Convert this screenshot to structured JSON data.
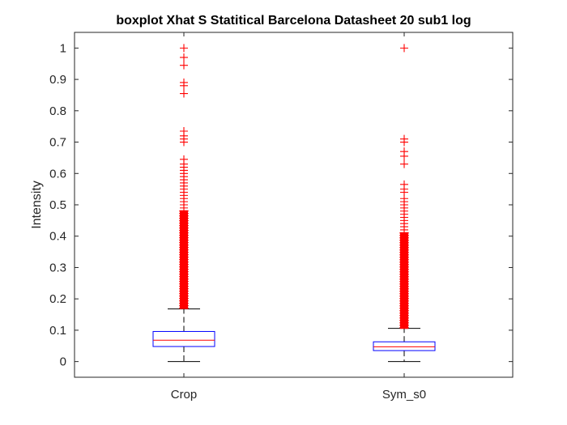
{
  "chart_data": {
    "type": "boxplot",
    "title": "boxplot Xhat S Statitical Barcelona Datasheet 20 sub1 log",
    "ylabel": "Intensity",
    "xlabel": "",
    "ylim": [
      -0.05,
      1.05
    ],
    "yticks": [
      0,
      0.1,
      0.2,
      0.3,
      0.4,
      0.5,
      0.6,
      0.7,
      0.8,
      0.9,
      1
    ],
    "ytick_labels": [
      "0",
      "0.1",
      "0.2",
      "0.3",
      "0.4",
      "0.5",
      "0.6",
      "0.7",
      "0.8",
      "0.9",
      "1"
    ],
    "categories": [
      "Crop",
      "Sym_s0"
    ],
    "boxes": [
      {
        "name": "Crop",
        "whisker_low": 0.0,
        "q1": 0.048,
        "median": 0.068,
        "q3": 0.096,
        "whisker_high": 0.168,
        "outlier_dense_range": [
          0.17,
          0.48
        ],
        "outliers": [
          0.49,
          0.5,
          0.51,
          0.52,
          0.53,
          0.54,
          0.55,
          0.56,
          0.57,
          0.58,
          0.59,
          0.6,
          0.61,
          0.62,
          0.63,
          0.645,
          0.7,
          0.71,
          0.72,
          0.735,
          0.855,
          0.88,
          0.89,
          0.945,
          0.97,
          1.0
        ]
      },
      {
        "name": "Sym_s0",
        "whisker_low": 0.0,
        "q1": 0.035,
        "median": 0.047,
        "q3": 0.063,
        "whisker_high": 0.106,
        "outlier_dense_range": [
          0.107,
          0.41
        ],
        "outliers": [
          0.42,
          0.43,
          0.44,
          0.45,
          0.46,
          0.47,
          0.48,
          0.49,
          0.5,
          0.51,
          0.52,
          0.54,
          0.55,
          0.565,
          0.63,
          0.655,
          0.67,
          0.7,
          0.71,
          1.0
        ]
      }
    ],
    "colors": {
      "box": "#0000ff",
      "median": "#ff0000",
      "whisker": "#000000",
      "outlier": "#ff0000",
      "axis": "#262626"
    },
    "grid": false,
    "legend": "none"
  }
}
